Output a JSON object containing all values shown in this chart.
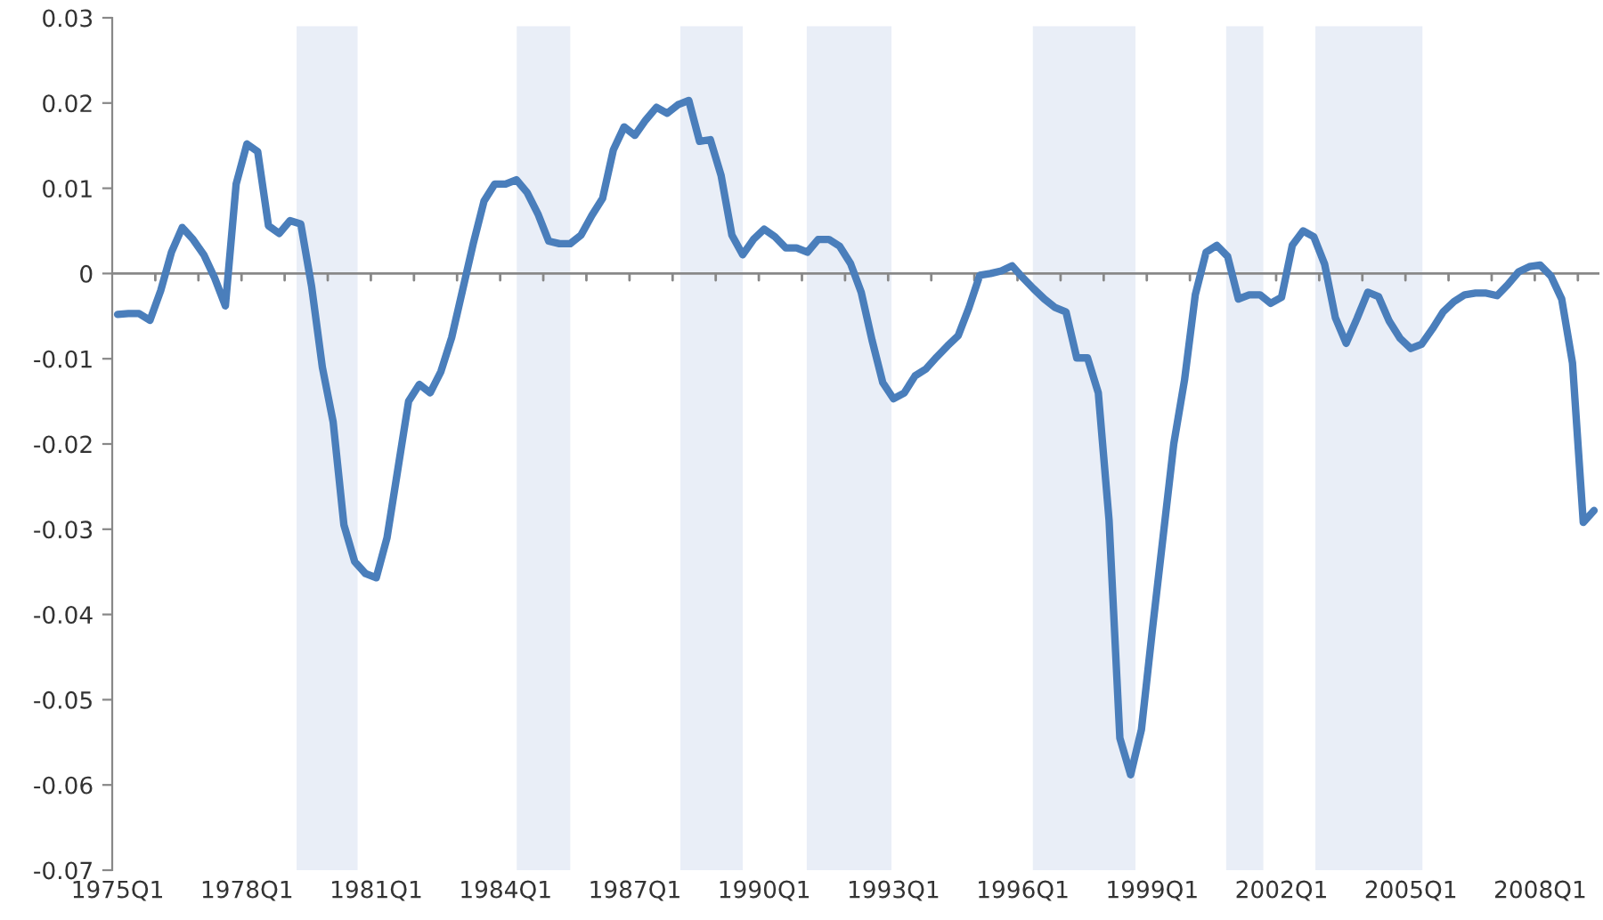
{
  "chart_data": {
    "type": "line",
    "categories": [
      "1975Q1",
      null,
      null,
      null,
      null,
      null,
      null,
      null,
      null,
      null,
      null,
      null,
      "1978Q1",
      null,
      null,
      null,
      null,
      null,
      null,
      null,
      null,
      null,
      null,
      null,
      "1981Q1",
      null,
      null,
      null,
      null,
      null,
      null,
      null,
      null,
      null,
      null,
      null,
      "1984Q1",
      null,
      null,
      null,
      null,
      null,
      null,
      null,
      null,
      null,
      null,
      null,
      "1987Q1",
      null,
      null,
      null,
      null,
      null,
      null,
      null,
      null,
      null,
      null,
      null,
      "1990Q1",
      null,
      null,
      null,
      null,
      null,
      null,
      null,
      null,
      null,
      null,
      null,
      "1993Q1",
      null,
      null,
      null,
      null,
      null,
      null,
      null,
      null,
      null,
      null,
      null,
      "1996Q1",
      null,
      null,
      null,
      null,
      null,
      null,
      null,
      null,
      null,
      null,
      null,
      "1999Q1",
      null,
      null,
      null,
      null,
      null,
      null,
      null,
      null,
      null,
      null,
      null,
      "2002Q1",
      null,
      null,
      null,
      null,
      null,
      null,
      null,
      null,
      null,
      null,
      null,
      "2005Q1",
      null,
      null,
      null,
      null,
      null,
      null,
      null,
      null,
      null,
      null,
      null,
      "2008Q1",
      null,
      null,
      null,
      null,
      null
    ],
    "series": [
      {
        "color": "#4a7ebb",
        "values": [
          -0.0048,
          -0.0047,
          -0.0047,
          -0.0055,
          -0.002,
          0.0025,
          0.0054,
          0.004,
          0.0022,
          -0.0005,
          -0.0038,
          0.0105,
          0.0152,
          0.0143,
          0.0056,
          0.0047,
          0.0062,
          0.0058,
          -0.0015,
          -0.011,
          -0.0174,
          -0.0295,
          -0.0338,
          -0.0352,
          -0.0357,
          -0.031,
          -0.023,
          -0.015,
          -0.013,
          -0.014,
          -0.0115,
          -0.0075,
          -0.002,
          0.0035,
          0.0085,
          0.0105,
          0.0105,
          0.011,
          0.0095,
          0.007,
          0.0038,
          0.0035,
          0.0035,
          0.0045,
          0.0068,
          0.0088,
          0.0145,
          0.0172,
          0.0162,
          0.018,
          0.0195,
          0.0188,
          0.0198,
          0.0203,
          0.0155,
          0.0157,
          0.0115,
          0.0045,
          0.0022,
          0.004,
          0.0052,
          0.0043,
          0.003,
          0.003,
          0.0025,
          0.004,
          0.004,
          0.0032,
          0.0012,
          -0.0022,
          -0.0078,
          -0.0128,
          -0.0147,
          -0.014,
          -0.012,
          -0.0112,
          -0.0098,
          -0.0085,
          -0.0073,
          -0.004,
          -0.0002,
          0,
          0.0003,
          0.0009,
          -0.0005,
          -0.0018,
          -0.003,
          -0.004,
          -0.0045,
          -0.0099,
          -0.0099,
          -0.014,
          -0.029,
          -0.0545,
          -0.0588,
          -0.0535,
          -0.042,
          -0.031,
          -0.02,
          -0.0125,
          -0.0025,
          0.0025,
          0.0033,
          0.002,
          -0.003,
          -0.0025,
          -0.0025,
          -0.0035,
          -0.0028,
          0.0033,
          0.005,
          0.0043,
          0.0011,
          -0.0052,
          -0.0082,
          -0.0053,
          -0.0022,
          -0.0027,
          -0.0056,
          -0.0076,
          -0.0088,
          -0.0083,
          -0.0065,
          -0.0045,
          -0.0033,
          -0.0025,
          -0.0023,
          -0.0023,
          -0.0026,
          -0.0013,
          0.0002,
          0.0008,
          0.001,
          -0.0003,
          -0.003,
          -0.0105,
          -0.0292,
          -0.0278
        ]
      }
    ],
    "ref_lines": [
      {
        "axis": "y",
        "value": 0,
        "color": "#888888",
        "line_style": "solid"
      }
    ],
    "ylim": [
      -0.07,
      0.03
    ],
    "yticks": [
      -0.07,
      -0.06,
      -0.05,
      -0.04,
      -0.03,
      -0.02,
      -0.01,
      0,
      0.01,
      0.02,
      0.03
    ],
    "grid": false,
    "legend": false,
    "marker": "none",
    "line_style": "solid"
  }
}
